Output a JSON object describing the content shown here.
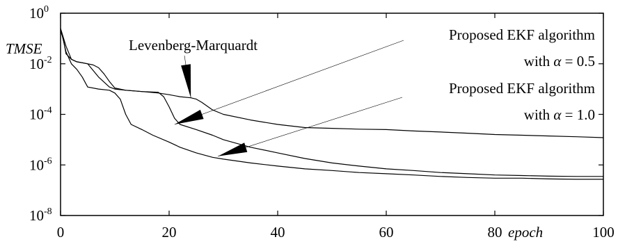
{
  "chart_data": {
    "type": "line",
    "title": "",
    "xlabel": "epoch",
    "ylabel": "TMSE",
    "xlim": [
      0,
      100
    ],
    "ylim": [
      1e-08,
      1
    ],
    "y_scale": "log",
    "grid": false,
    "legend": "none",
    "x_ticks": [
      0,
      20,
      40,
      60,
      80,
      100
    ],
    "y_ticks": [
      {
        "value": 1,
        "base": "10",
        "exp": "0"
      },
      {
        "value": 0.01,
        "base": "10",
        "exp": "-2"
      },
      {
        "value": 0.0001,
        "base": "10",
        "exp": "-4"
      },
      {
        "value": 1e-06,
        "base": "10",
        "exp": "-6"
      },
      {
        "value": 1e-08,
        "base": "10",
        "exp": "-8"
      }
    ],
    "series": [
      {
        "name": "Levenberg-Marquardt",
        "x": [
          0,
          0.5,
          1,
          2,
          3,
          4,
          5,
          6,
          7,
          8,
          9,
          10,
          12,
          15,
          18,
          20,
          22,
          24,
          25,
          26,
          28,
          30,
          35,
          40,
          45,
          50,
          55,
          60,
          65,
          70,
          75,
          80,
          85,
          90,
          95,
          100
        ],
        "y": [
          0.2,
          0.1,
          0.025,
          0.015,
          0.012,
          0.011,
          0.01,
          0.009,
          0.007,
          0.004,
          0.002,
          0.0011,
          0.0009,
          0.0008,
          0.0007,
          0.0006,
          0.0005,
          0.00045,
          0.0004,
          0.0003,
          0.00015,
          0.0001,
          6e-05,
          4e-05,
          3e-05,
          2.8e-05,
          2.6e-05,
          2.5e-05,
          2.2e-05,
          2e-05,
          1.8e-05,
          1.6e-05,
          1.5e-05,
          1.4e-05,
          1.3e-05,
          1.2e-05
        ]
      },
      {
        "name": "Proposed EKF algorithm with α = 0.5",
        "x": [
          0,
          1,
          2,
          3,
          5,
          7,
          9,
          10,
          12,
          15,
          18,
          19,
          20,
          21,
          22,
          25,
          28,
          30,
          35,
          40,
          45,
          50,
          55,
          60,
          65,
          70,
          75,
          80,
          85,
          90,
          95,
          100
        ],
        "y": [
          0.25,
          0.05,
          0.015,
          0.012,
          0.01,
          0.003,
          0.0012,
          0.001,
          0.0009,
          0.0008,
          0.00075,
          0.0005,
          0.0002,
          7e-05,
          4e-05,
          2.5e-05,
          1.5e-05,
          1e-05,
          5e-06,
          3e-06,
          1.8e-06,
          1.2e-06,
          9e-07,
          7e-07,
          6e-07,
          5e-07,
          4.5e-07,
          4e-07,
          3.8e-07,
          3.6e-07,
          3.5e-07,
          3.5e-07
        ]
      },
      {
        "name": "Proposed EKF algorithm with α = 1.0",
        "x": [
          0,
          1,
          2,
          3,
          4,
          5,
          7,
          9,
          10,
          11,
          12,
          13,
          15,
          17,
          20,
          22,
          25,
          28,
          30,
          35,
          40,
          45,
          50,
          55,
          60,
          65,
          70,
          75,
          80,
          85,
          90,
          95,
          100
        ],
        "y": [
          0.25,
          0.03,
          0.01,
          0.006,
          0.003,
          0.0012,
          0.001,
          0.0009,
          0.0007,
          0.0004,
          0.0001,
          4e-05,
          2.5e-05,
          1.5e-05,
          8e-06,
          5e-06,
          3e-06,
          2e-06,
          1.7e-06,
          1.2e-06,
          9e-07,
          7e-07,
          6e-07,
          5e-07,
          4.5e-07,
          4e-07,
          3.5e-07,
          3.2e-07,
          3e-07,
          3e-07,
          2.8e-07,
          2.7e-07,
          2.7e-07
        ]
      }
    ],
    "annotations": [
      {
        "text": "Levenberg-Marquardt",
        "points_to_x": 24,
        "points_to_y": 0.00045
      },
      {
        "lines": [
          {
            "text": "Proposed EKF algorithm"
          },
          {
            "prefix": "with ",
            "symbol": "α",
            "suffix": " = 0.5"
          }
        ],
        "points_to_x": 21,
        "points_to_y": 4e-05
      },
      {
        "lines": [
          {
            "text": "Proposed EKF algorithm"
          },
          {
            "prefix": "with ",
            "symbol": "α",
            "suffix": " = 1.0"
          }
        ],
        "points_to_x": 29,
        "points_to_y": 2.2e-06
      }
    ]
  }
}
